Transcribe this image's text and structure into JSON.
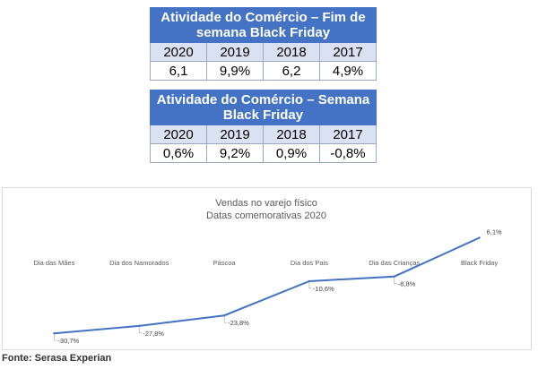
{
  "tables": [
    {
      "title": "Atividade do Comércio – Fim de semana Black Friday",
      "years": [
        "2020",
        "2019",
        "2018",
        "2017"
      ],
      "values": [
        "6,1",
        "9,9%",
        "6,2",
        "4,9%"
      ]
    },
    {
      "title": "Atividade do Comércio – Semana Black Friday",
      "years": [
        "2020",
        "2019",
        "2018",
        "2017"
      ],
      "values": [
        "0,6%",
        "9,2%",
        "0,9%",
        "-0,8%"
      ]
    }
  ],
  "chart_data": {
    "type": "line",
    "title": "Vendas no varejo físico",
    "subtitle": "Datas comemorativas 2020",
    "categories": [
      "Dia das Mães",
      "Dia dos Namorados",
      "Páscoa",
      "Dia dos Pais",
      "Dia das Crianças",
      "Black Friday"
    ],
    "values": [
      -30.7,
      -27.8,
      -23.8,
      -10.6,
      -8.8,
      6.1
    ],
    "data_labels": [
      "-30,7%",
      "-27,8%",
      "-23,8%",
      "-10,6%",
      "-8,8%",
      "6,1%"
    ],
    "ylim": [
      -32,
      8
    ],
    "grid": false,
    "line_color": "#4472c4"
  },
  "source": "Fonte: Serasa Experian"
}
